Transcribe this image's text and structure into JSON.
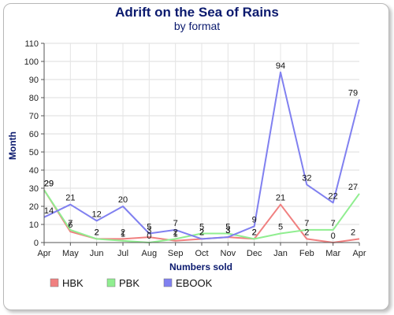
{
  "chart_data": {
    "type": "line",
    "title": "Adrift on the Sea of Rains",
    "subtitle": "by format",
    "xlabel": "Numbers sold",
    "ylabel": "Month",
    "categories": [
      "Apr",
      "May",
      "Jun",
      "Jul",
      "Aug",
      "Sep",
      "Oct",
      "Nov",
      "Dec",
      "Jan",
      "Feb",
      "Mar",
      "Apr"
    ],
    "ylim": [
      0,
      110
    ],
    "yticks": [
      0,
      10,
      20,
      30,
      40,
      50,
      60,
      70,
      80,
      90,
      100,
      110
    ],
    "grid": true,
    "legend": "bottom-left",
    "series": [
      {
        "name": "HBK",
        "color": "#f08080",
        "values": [
          29,
          6,
          2,
          2,
          3,
          1,
          2,
          3,
          2,
          21,
          2,
          0,
          2
        ]
      },
      {
        "name": "PBK",
        "color": "#90ee90",
        "values": [
          29,
          7,
          2,
          1,
          0,
          2,
          5,
          5,
          2,
          5,
          7,
          7,
          27
        ]
      },
      {
        "name": "EBOOK",
        "color": "#8080f0",
        "values": [
          14,
          21,
          12,
          20,
          5,
          7,
          2,
          3,
          9,
          94,
          32,
          22,
          79
        ]
      }
    ]
  }
}
